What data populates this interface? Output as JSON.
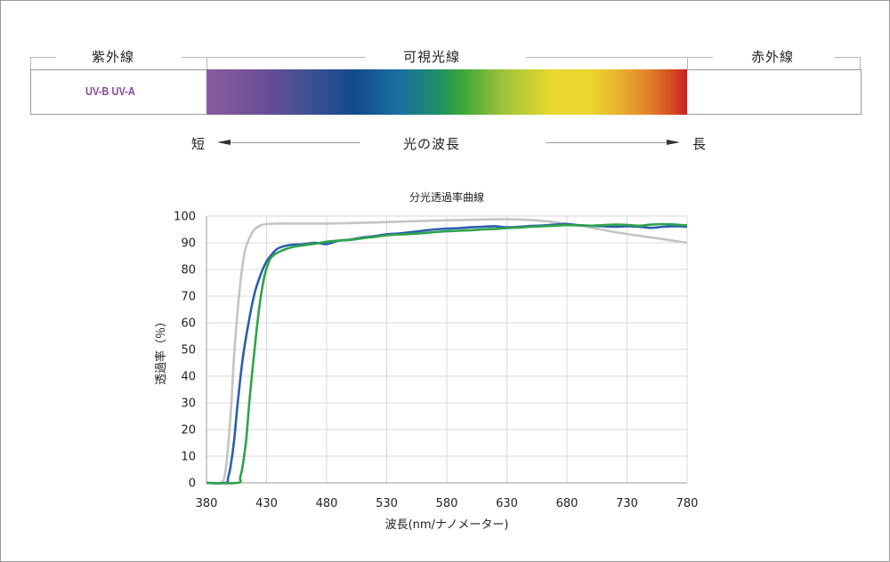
{
  "spectrum": {
    "uv_region": "紫外線",
    "visible_region": "可視光線",
    "ir_region": "赤外線",
    "uv_types": "UV-B UV-A",
    "short_label": "短",
    "long_label": "長",
    "wavelength_label": "光の波長"
  },
  "colors": {
    "uv_text": "#8a4a9a",
    "series1": "#c4c4c4",
    "series2": "#2a5fae",
    "series3": "#2fa34a",
    "grid": "#d9d9d9"
  },
  "chart_data": {
    "type": "line",
    "title": "分光透過率曲線",
    "xlabel": "波長(nm/ナノメーター)",
    "ylabel": "透過率（％）",
    "xlim": [
      380,
      780
    ],
    "ylim": [
      0,
      100
    ],
    "xticks": [
      380,
      430,
      480,
      530,
      580,
      630,
      680,
      730,
      780
    ],
    "yticks": [
      0,
      10,
      20,
      30,
      40,
      50,
      60,
      70,
      80,
      90,
      100
    ],
    "grid": true,
    "series": [
      {
        "color": "#c4c4c4",
        "x": [
          380,
          392,
          396,
          400,
          403,
          406,
          409,
          412,
          416,
          420,
          425,
          430,
          440,
          450,
          480,
          520,
          560,
          600,
          630,
          660,
          690,
          720,
          750,
          780
        ],
        "y": [
          0,
          0,
          5,
          25,
          48,
          65,
          78,
          87,
          92,
          95,
          96.5,
          97,
          97.2,
          97.2,
          97.2,
          97.6,
          98.2,
          98.6,
          98.8,
          98.2,
          96.5,
          94,
          92,
          90
        ]
      },
      {
        "color": "#2a5fae",
        "x": [
          380,
          396,
          398,
          400,
          403,
          406,
          410,
          415,
          420,
          425,
          430,
          435,
          440,
          450,
          460,
          470,
          480,
          490,
          500,
          510,
          520,
          530,
          540,
          550,
          560,
          570,
          580,
          590,
          600,
          610,
          620,
          630,
          640,
          650,
          660,
          670,
          680,
          690,
          700,
          710,
          720,
          730,
          740,
          750,
          760,
          770,
          780
        ],
        "y": [
          0,
          0,
          2,
          6,
          16,
          30,
          46,
          60,
          71,
          78,
          83,
          86,
          88,
          89.2,
          89.4,
          90,
          89.5,
          90.8,
          91.2,
          92,
          92.5,
          93.2,
          93.5,
          94,
          94.5,
          95,
          95.3,
          95.5,
          95.8,
          96,
          96.2,
          95.8,
          96,
          96.3,
          96.5,
          96.8,
          97,
          96.6,
          96.4,
          96.2,
          96,
          96.2,
          96,
          95.6,
          96,
          96.2,
          96
        ]
      },
      {
        "color": "#2fa34a",
        "x": [
          380,
          406,
          408,
          410,
          413,
          416,
          420,
          424,
          428,
          432,
          435,
          440,
          450,
          460,
          470,
          480,
          490,
          500,
          510,
          520,
          530,
          540,
          550,
          560,
          570,
          580,
          590,
          600,
          610,
          620,
          630,
          640,
          650,
          660,
          670,
          680,
          690,
          700,
          710,
          720,
          730,
          740,
          750,
          760,
          770,
          780
        ],
        "y": [
          0,
          0,
          2,
          6,
          16,
          32,
          50,
          66,
          77,
          83,
          85,
          86.5,
          88.2,
          89,
          89.6,
          90.4,
          90.8,
          91.1,
          91.7,
          92.2,
          92.8,
          93.1,
          93.3,
          93.6,
          94,
          94.3,
          94.5,
          94.7,
          95,
          95.2,
          95.5,
          95.7,
          96,
          96.2,
          96.4,
          96.6,
          96.5,
          96.4,
          96.6,
          96.8,
          96.7,
          96.4,
          96.8,
          97,
          96.8,
          96.5
        ]
      }
    ]
  }
}
